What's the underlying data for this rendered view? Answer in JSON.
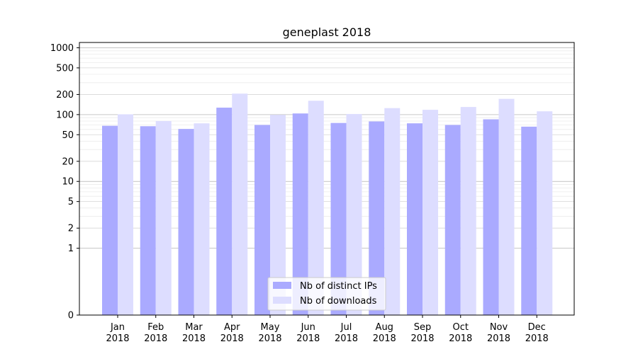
{
  "chart_data": {
    "type": "bar",
    "title": "geneplast 2018",
    "xlabel": "",
    "ylabel": "",
    "yscale": "symlog",
    "ylim": [
      0,
      1200
    ],
    "yticks": [
      0,
      1,
      2,
      5,
      10,
      20,
      50,
      100,
      200,
      500,
      1000
    ],
    "ytick_labels": [
      "0",
      "1",
      "2",
      "5",
      "10",
      "20",
      "50",
      "100",
      "200",
      "500",
      "1000"
    ],
    "categories": [
      "Jan\n2018",
      "Feb\n2018",
      "Mar\n2018",
      "Apr\n2018",
      "May\n2018",
      "Jun\n2018",
      "Jul\n2018",
      "Aug\n2018",
      "Sep\n2018",
      "Oct\n2018",
      "Nov\n2018",
      "Dec\n2018"
    ],
    "series": [
      {
        "name": "Nb of distinct IPs",
        "color": "#aaaaff",
        "values": [
          68,
          67,
          61,
          127,
          70,
          104,
          75,
          79,
          74,
          70,
          85,
          66
        ]
      },
      {
        "name": "Nb of downloads",
        "color": "#ddddff",
        "values": [
          101,
          80,
          74,
          206,
          99,
          161,
          102,
          125,
          118,
          130,
          172,
          112
        ]
      }
    ],
    "grid": true,
    "legend_position": "bottom-center"
  }
}
